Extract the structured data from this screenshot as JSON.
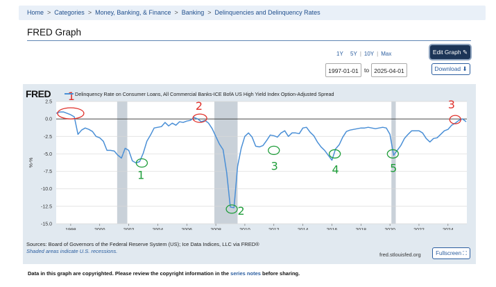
{
  "breadcrumb": [
    "Home",
    "Categories",
    "Money, Banking, & Finance",
    "Banking",
    "Delinquencies and Delinquency Rates"
  ],
  "page_title": "FRED Graph",
  "range_links": [
    "1Y",
    "5Y",
    "10Y",
    "Max"
  ],
  "date_range": {
    "start": "1997-01-01",
    "to_label": "to",
    "end": "2025-04-01"
  },
  "buttons": {
    "edit_graph": "Edit Graph",
    "download": "Download",
    "fullscreen": "Fullscreen"
  },
  "chart_header": {
    "logo": "FRED",
    "series_title": "Delinquency Rate on Consumer Loans, All Commercial Banks-ICE BofA US High Yield Index Option-Adjusted Spread"
  },
  "footer": {
    "sources": "Sources: Board of Governors of the Federal Reserve System (US); Ice Data Indices, LLC via FRED®",
    "shaded_note": "Shaded areas indicate U.S. recessions.",
    "url": "fred.stlouisfed.org"
  },
  "copyright": {
    "prefix": "Data in this graph are copyrighted. Please review the copyright information in the ",
    "link": "series notes",
    "suffix": " before sharing."
  },
  "colors": {
    "series": "#4a8fd6",
    "panel": "#e1e9f0",
    "recession": "#c9d1d9",
    "annotation_red": "#e0302a",
    "annotation_green": "#1f9d3a"
  },
  "chart_data": {
    "type": "line",
    "ylabel": "%-%",
    "xlim": [
      1997.0,
      2025.3
    ],
    "ylim": [
      -15.0,
      2.5
    ],
    "yticks": [
      2.5,
      0.0,
      -2.5,
      -5.0,
      -7.5,
      -10.0,
      -12.5,
      -15.0
    ],
    "ytick_labels": [
      "2.5",
      "0.0",
      "-2.5",
      "-5.0",
      "-7.5",
      "-10.0",
      "-12.5",
      "-15.0"
    ],
    "xticks": [
      1998,
      2000,
      2002,
      2004,
      2006,
      2008,
      2010,
      2012,
      2014,
      2016,
      2018,
      2020,
      2022,
      2024
    ],
    "xtick_labels": [
      "1998",
      "2000",
      "2002",
      "2004",
      "2006",
      "2008",
      "2010",
      "2012",
      "2014",
      "2016",
      "2018",
      "2020",
      "2022",
      "2024"
    ],
    "reference_line": 0.0,
    "recessions": [
      [
        2001.2,
        2001.9
      ],
      [
        2007.9,
        2009.5
      ],
      [
        2020.1,
        2020.4
      ]
    ],
    "series": [
      {
        "x": [
          1997.0,
          1997.25,
          1997.5,
          1997.75,
          1998.0,
          1998.25,
          1998.5,
          1998.75,
          1999.0,
          1999.25,
          1999.5,
          1999.75,
          2000.0,
          2000.25,
          2000.5,
          2000.75,
          2001.0,
          2001.25,
          2001.5,
          2001.75,
          2002.0,
          2002.25,
          2002.5,
          2002.75,
          2003.0,
          2003.25,
          2003.5,
          2003.75,
          2004.0,
          2004.25,
          2004.5,
          2004.75,
          2005.0,
          2005.25,
          2005.5,
          2005.75,
          2006.0,
          2006.25,
          2006.5,
          2006.75,
          2007.0,
          2007.25,
          2007.5,
          2007.75,
          2008.0,
          2008.25,
          2008.5,
          2008.75,
          2009.0,
          2009.25,
          2009.5,
          2009.75,
          2010.0,
          2010.25,
          2010.5,
          2010.75,
          2011.0,
          2011.25,
          2011.5,
          2011.75,
          2012.0,
          2012.25,
          2012.5,
          2012.75,
          2013.0,
          2013.25,
          2013.5,
          2013.75,
          2014.0,
          2014.25,
          2014.5,
          2014.75,
          2015.0,
          2015.25,
          2015.5,
          2015.75,
          2016.0,
          2016.25,
          2016.5,
          2016.75,
          2017.0,
          2017.25,
          2017.5,
          2017.75,
          2018.0,
          2018.25,
          2018.5,
          2018.75,
          2019.0,
          2019.25,
          2019.5,
          2019.75,
          2020.0,
          2020.25,
          2020.5,
          2020.75,
          2021.0,
          2021.25,
          2021.5,
          2021.75,
          2022.0,
          2022.25,
          2022.5,
          2022.75,
          2023.0,
          2023.25,
          2023.5,
          2023.75,
          2024.0,
          2024.25,
          2024.5,
          2024.75,
          2025.0,
          2025.25
        ],
        "y": [
          0.8,
          1.0,
          1.0,
          0.8,
          0.6,
          0.3,
          -2.2,
          -1.6,
          -1.3,
          -1.5,
          -1.8,
          -2.5,
          -2.7,
          -3.2,
          -4.5,
          -4.5,
          -4.6,
          -5.2,
          -5.6,
          -4.2,
          -4.5,
          -6.0,
          -6.3,
          -6.1,
          -4.9,
          -3.2,
          -2.3,
          -1.3,
          -1.2,
          -1.1,
          -0.5,
          -1.0,
          -0.6,
          -0.9,
          -0.4,
          -0.5,
          -0.3,
          -0.2,
          0.2,
          0.0,
          -0.4,
          -0.2,
          -0.6,
          -1.4,
          -2.5,
          -3.6,
          -4.4,
          -7.7,
          -12.6,
          -12.7,
          -6.8,
          -4.2,
          -2.5,
          -2.0,
          -2.6,
          -3.9,
          -4.0,
          -3.8,
          -3.1,
          -2.3,
          -2.4,
          -2.6,
          -2.0,
          -1.7,
          -2.5,
          -2.0,
          -2.0,
          -2.1,
          -1.3,
          -1.2,
          -1.9,
          -2.4,
          -3.3,
          -4.0,
          -4.5,
          -5.2,
          -5.9,
          -4.3,
          -3.7,
          -2.6,
          -1.8,
          -1.6,
          -1.5,
          -1.4,
          -1.3,
          -1.3,
          -1.2,
          -1.3,
          -1.4,
          -1.3,
          -1.2,
          -1.3,
          -2.2,
          -5.2,
          -4.5,
          -3.8,
          -2.8,
          -2.2,
          -1.7,
          -1.7,
          -1.7,
          -2.0,
          -2.8,
          -3.3,
          -2.8,
          -2.7,
          -2.2,
          -1.7,
          -1.5,
          -0.9,
          -0.6,
          -0.2,
          0.0,
          -0.4
        ]
      }
    ]
  },
  "annotations": {
    "red_numbers": [
      "1",
      "2",
      "3"
    ],
    "green_numbers": [
      "1",
      "2",
      "3",
      "4",
      "5"
    ]
  }
}
